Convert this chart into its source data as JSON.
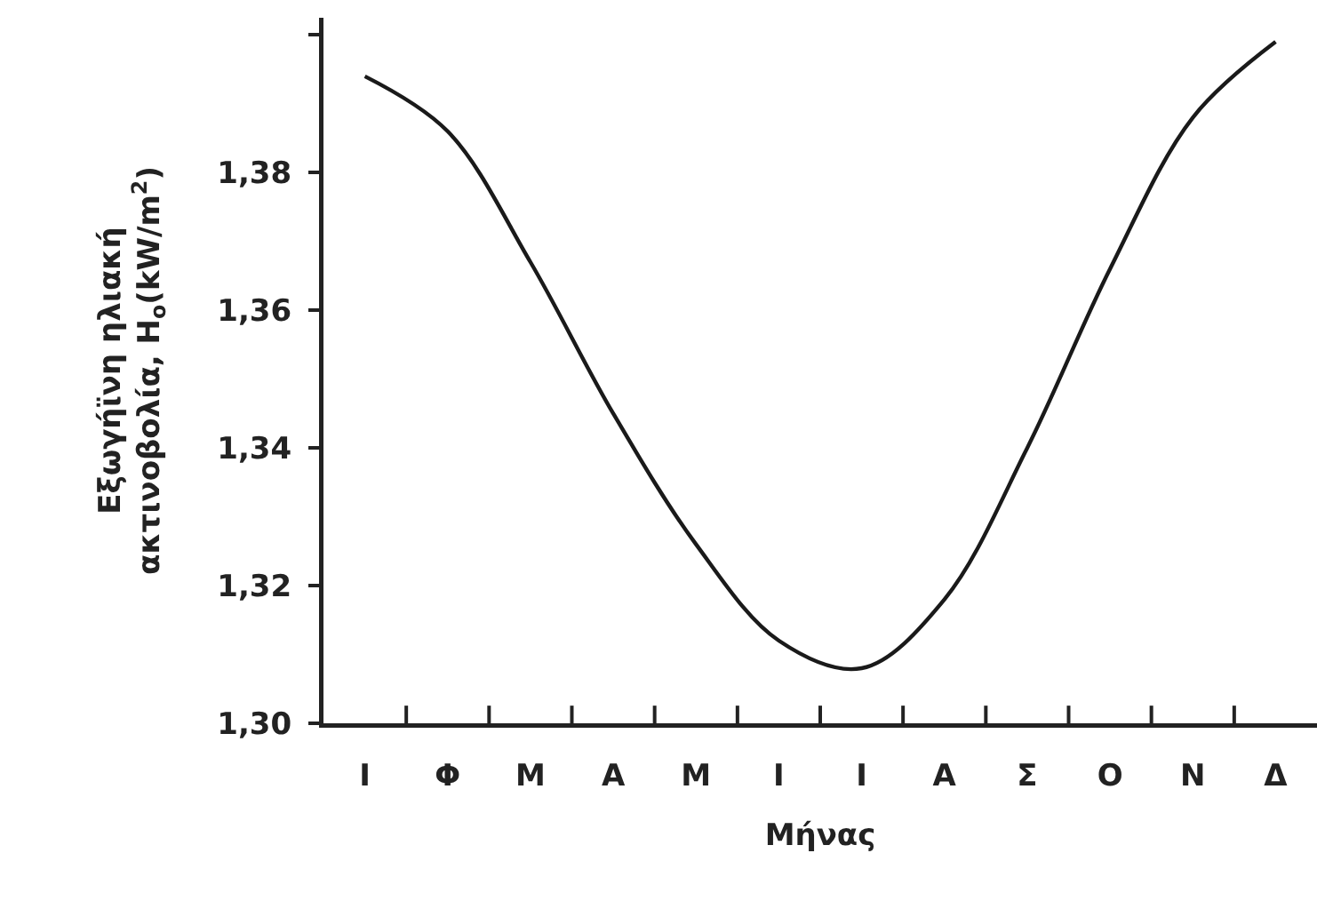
{
  "chart_data": {
    "type": "line",
    "xlabel": "Μήνας",
    "ylabel": "Εξωγήϊνη ηλιακή\nακτινοβολία, H$_{o}$(kW/m$^{2}$)",
    "categories": [
      "Ι",
      "Φ",
      "Μ",
      "Α",
      "Μ",
      "Ι",
      "Ι",
      "Α",
      "Σ",
      "Ο",
      "Ν",
      "Δ"
    ],
    "series": [
      {
        "color": "#1a1a1a",
        "values": [
          1.394,
          1.386,
          1.367,
          1.345,
          1.326,
          1.312,
          1.308,
          1.318,
          1.34,
          1.366,
          1.388,
          1.399
        ]
      }
    ],
    "ylim": [
      1.3,
      1.4025
    ],
    "yticks": [
      {
        "value": 1.3,
        "label": "1,30"
      },
      {
        "value": 1.32,
        "label": "1,32"
      },
      {
        "value": 1.34,
        "label": "1,34"
      },
      {
        "value": 1.36,
        "label": "1,36"
      },
      {
        "value": 1.38,
        "label": "1,38"
      },
      {
        "value": 1.4,
        "label": null
      }
    ],
    "grid": false,
    "marker": "none",
    "line_style": "solid"
  }
}
